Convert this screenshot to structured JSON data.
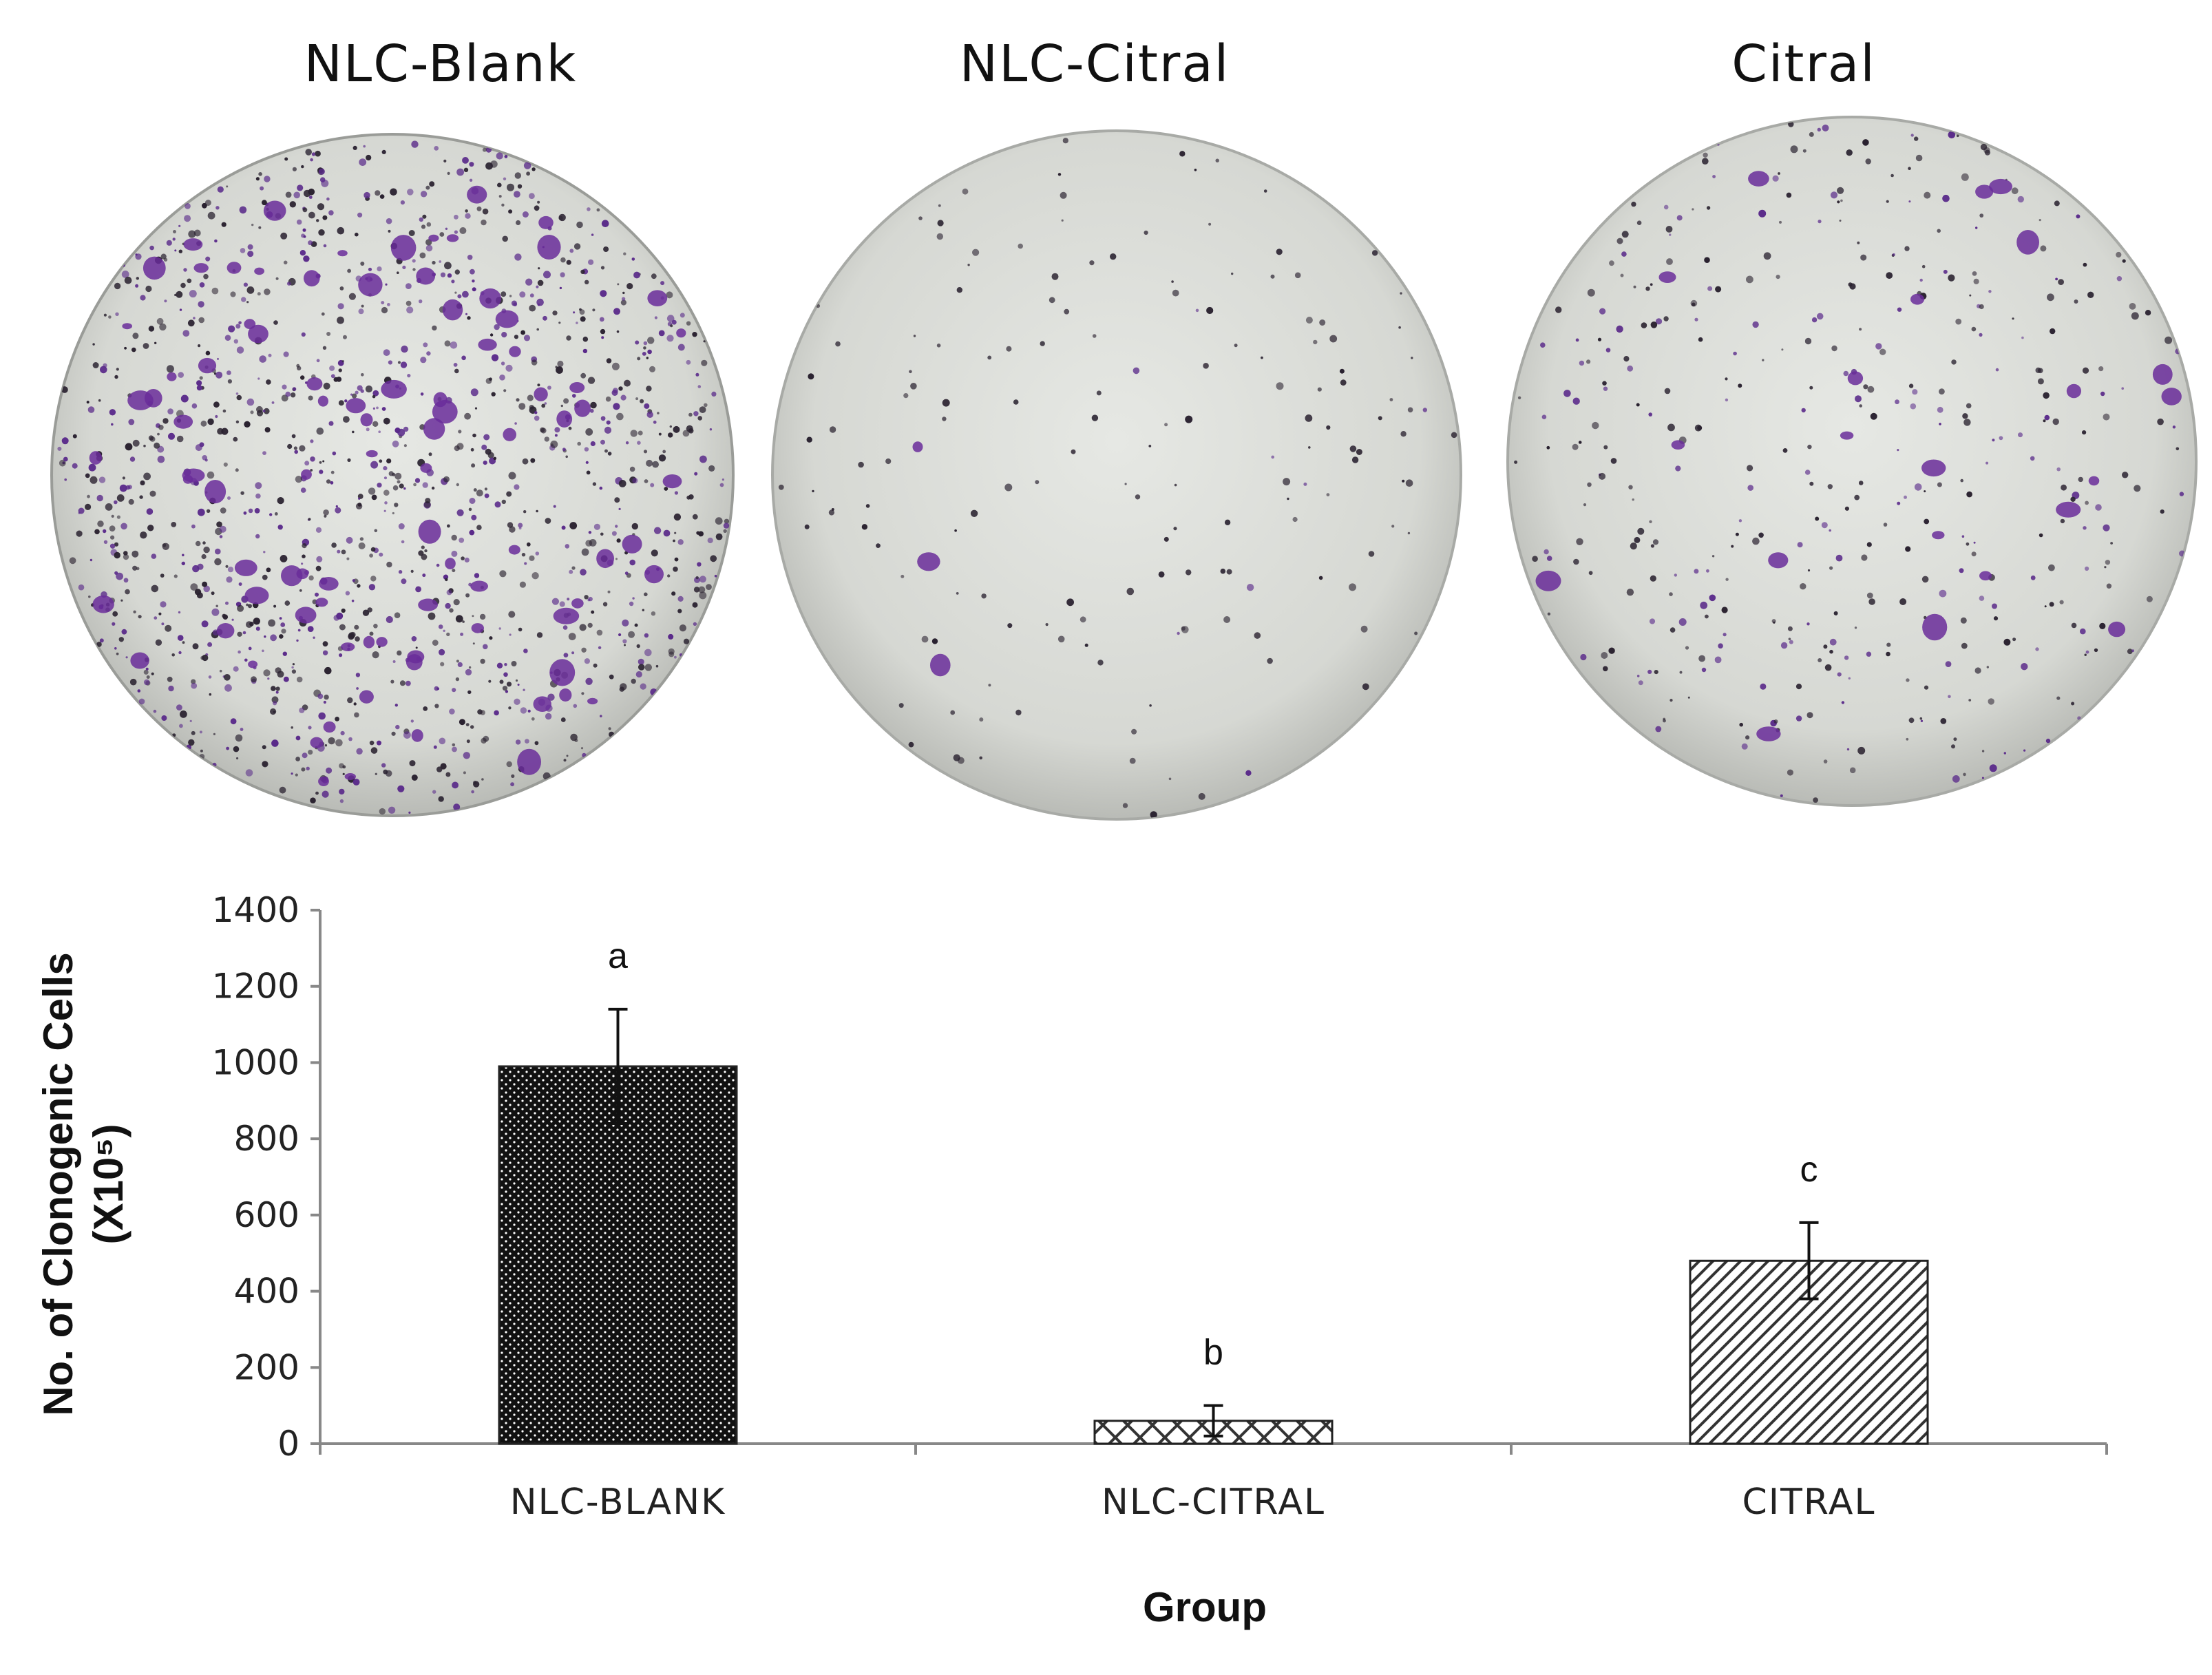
{
  "plates": [
    {
      "title": "NLC-Blank",
      "density": "high"
    },
    {
      "title": "NLC-Citral",
      "density": "low"
    },
    {
      "title": "Citral",
      "density": "medium"
    }
  ],
  "colors": {
    "plate_bg": "#d9dbd6",
    "colony_purple": "#5a2a8a",
    "colony_dark": "#2a2230",
    "bar_dark": "#111111",
    "axis": "#888888"
  },
  "chart_data": {
    "type": "bar",
    "categories": [
      "NLC-BLANK",
      "NLC-CITRAL",
      "CITRAL"
    ],
    "values": [
      990,
      60,
      480
    ],
    "errors": [
      150,
      40,
      100
    ],
    "annotations": [
      "a",
      "b",
      "c"
    ],
    "patterns": [
      "dotted-dark",
      "crosshatch",
      "diagonal"
    ],
    "ylabel_line1": "No. of Clonogenic Cells",
    "ylabel_line2": "(X10⁵)",
    "xlabel": "Group",
    "ylim": [
      0,
      1400
    ],
    "yticks": [
      0,
      200,
      400,
      600,
      800,
      1000,
      1200,
      1400
    ],
    "grid": false
  }
}
